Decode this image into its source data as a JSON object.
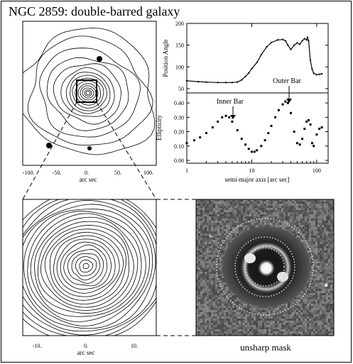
{
  "title": "NGC 2859: double-barred galaxy",
  "top_left_panel": {
    "xlabel": "arc sec",
    "x_ticks": [
      "-100.",
      "-50.",
      "0.",
      "50.",
      "100."
    ]
  },
  "bottom_left_panel": {
    "xlabel": "arc sec",
    "x_ticks": [
      "-10.",
      "0.",
      "10."
    ]
  },
  "right_image": {
    "caption": "unsharp mask"
  },
  "chart_data": [
    {
      "type": "line",
      "ylabel": "Position Angle",
      "x_scale": "log",
      "xlim": [
        1,
        150
      ],
      "ylim": [
        40,
        200
      ],
      "y_ticks": [
        "50",
        "100",
        "150",
        "200"
      ],
      "x": [
        1,
        1.5,
        2,
        3,
        4,
        5,
        6,
        7,
        8,
        9,
        10,
        12,
        14,
        17,
        20,
        25,
        30,
        33,
        36,
        40,
        45,
        50,
        55,
        60,
        65,
        70,
        72,
        75,
        80,
        85,
        90,
        100,
        110,
        120
      ],
      "values": [
        68,
        66,
        65,
        64,
        64,
        64,
        65,
        70,
        78,
        86,
        96,
        110,
        128,
        146,
        156,
        162,
        163,
        160,
        150,
        140,
        150,
        155,
        152,
        160,
        165,
        162,
        168,
        160,
        115,
        95,
        85,
        82,
        83,
        84
      ]
    },
    {
      "type": "scatter",
      "ylabel": "Ellipticity",
      "xlabel": "semi-major axis [arc sec]",
      "x_scale": "log",
      "xlim": [
        1,
        150
      ],
      "ylim": [
        0,
        0.45
      ],
      "y_ticks": [
        "0.00",
        "0.10",
        "0.20",
        "0.30",
        "0.40"
      ],
      "x_ticks": [
        "1",
        "10",
        "100"
      ],
      "annotations": [
        "Inner Bar",
        "Outer Bar"
      ],
      "x": [
        1,
        1.3,
        1.6,
        2,
        2.5,
        3,
        3.5,
        4,
        4.5,
        5,
        6,
        7,
        8,
        9,
        10,
        11,
        12,
        14,
        16,
        18,
        20,
        23,
        26,
        30,
        33,
        36,
        40,
        45,
        50,
        55,
        60,
        65,
        70,
        75,
        80,
        85,
        90,
        100,
        110,
        120
      ],
      "values": [
        0.12,
        0.14,
        0.16,
        0.19,
        0.23,
        0.27,
        0.3,
        0.31,
        0.3,
        0.27,
        0.21,
        0.15,
        0.11,
        0.08,
        0.06,
        0.06,
        0.07,
        0.1,
        0.14,
        0.19,
        0.24,
        0.3,
        0.35,
        0.39,
        0.41,
        0.4,
        0.33,
        0.2,
        0.12,
        0.11,
        0.15,
        0.22,
        0.27,
        0.28,
        0.25,
        0.12,
        0.1,
        0.18,
        0.22,
        0.23
      ]
    }
  ]
}
